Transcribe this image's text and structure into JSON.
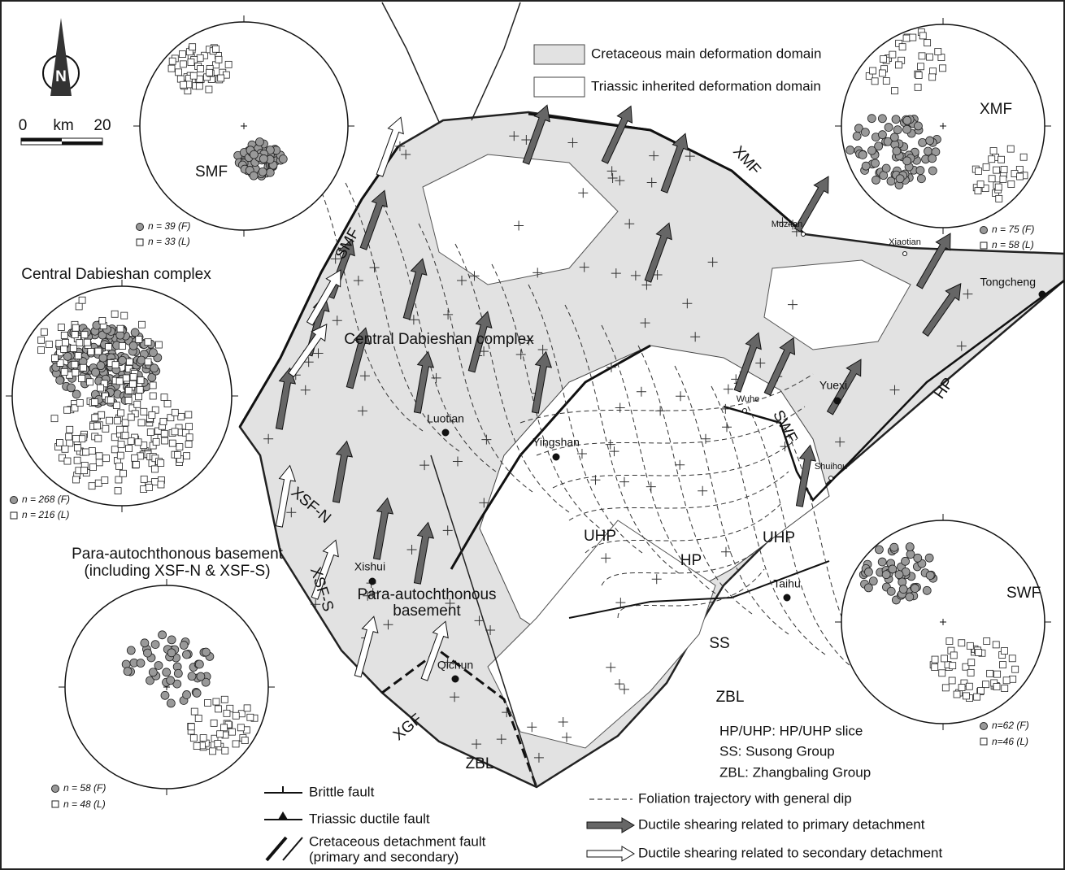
{
  "north_arrow": {
    "label": "N"
  },
  "scale": {
    "start": "0",
    "unit": "km",
    "end": "20"
  },
  "domain_legend": [
    "Cretaceous main deformation domain",
    "Triassic inherited deformation domain"
  ],
  "stereonets": [
    {
      "label": "SMF",
      "counts": [
        "n = 39 (F)",
        "n = 33 (L)"
      ]
    },
    {
      "title": [
        "Central Dabieshan complex"
      ],
      "counts": [
        "n = 268 (F)",
        "n = 216 (L)"
      ]
    },
    {
      "title": [
        "Para-autochthonous basement",
        "(including XSF-N & XSF-S)"
      ],
      "counts": [
        "n = 58 (F)",
        "n = 48 (L)"
      ]
    },
    {
      "label": "XMF",
      "counts": [
        "n = 75 (F)",
        "n = 58 (L)"
      ]
    },
    {
      "label": "SWF",
      "counts": [
        "n=62 (F)",
        "n=46 (L)"
      ]
    }
  ],
  "faults": [
    "SMF",
    "XMF",
    "SWF",
    "XSF-N",
    "XSF-S",
    "XGF",
    "HP"
  ],
  "units": [
    "Central Dabieshan complex",
    "UHP",
    "UHP",
    "HP",
    "SS",
    "ZBL",
    "ZBL",
    "Para-autochthonous",
    "basement"
  ],
  "places": [
    "Mozitan",
    "Xiaotian",
    "Tongcheng",
    "Yuexi",
    "Wuhe",
    "Shuihou",
    "Luotian",
    "Yingshan",
    "Xishui",
    "Taihu",
    "Qichun"
  ],
  "abbreviations": [
    "HP/UHP: HP/UHP slice",
    "SS: Susong Group",
    "ZBL: Zhangbaling Group"
  ],
  "legend": [
    "Brittle fault",
    "Triassic ductile fault",
    "Cretaceous detachment fault",
    "(primary and secondary)",
    "Foliation trajectory with general dip",
    "Ductile shearing  related to primary detachment",
    "Ductile shearing  related to secondary detachment"
  ]
}
